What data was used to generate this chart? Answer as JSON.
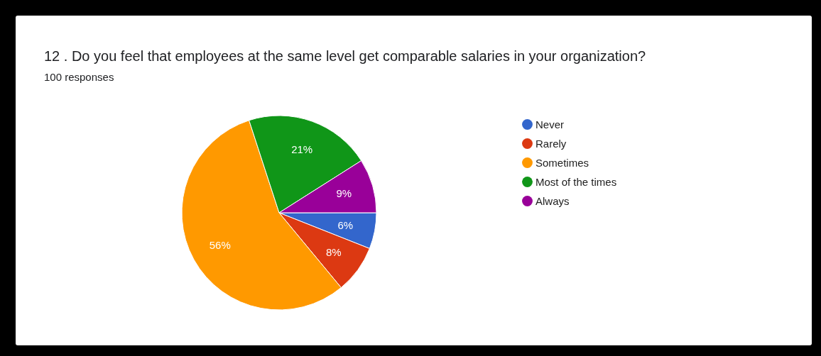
{
  "chart_data": {
    "type": "pie",
    "title": "12 . Do you feel that employees at the same level get comparable salaries in your organization?",
    "subtitle": "100 responses",
    "categories": [
      "Never",
      "Rarely",
      "Sometimes",
      "Most of the times",
      "Always"
    ],
    "values": [
      6,
      8,
      56,
      21,
      9
    ],
    "colors": [
      "#3366cc",
      "#dc3912",
      "#ff9900",
      "#109618",
      "#990099"
    ],
    "value_labels": [
      "6%",
      "8%",
      "56%",
      "21%",
      "9%"
    ],
    "legend": "right"
  }
}
